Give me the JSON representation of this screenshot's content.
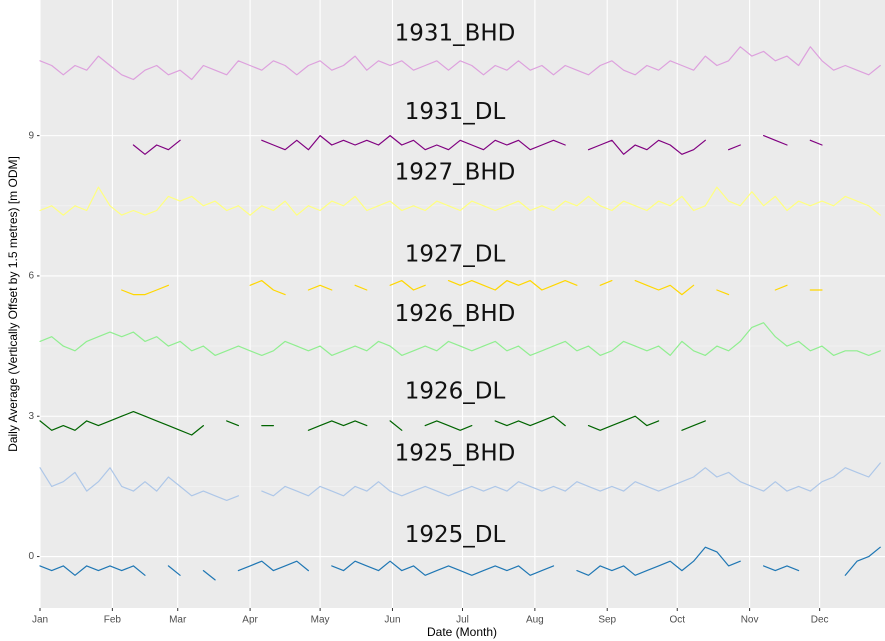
{
  "chart_data": {
    "type": "line",
    "x_label": "Date (Month)",
    "y_label": "Daily Average (Vertically Offset by 1.5 metres) [m ODM]",
    "x": [
      1,
      6,
      11,
      16,
      21,
      26,
      31,
      36,
      41,
      46,
      51,
      56,
      61,
      66,
      71,
      76,
      81,
      86,
      91,
      96,
      101,
      106,
      111,
      116,
      121,
      126,
      131,
      136,
      141,
      146,
      151,
      156,
      161,
      166,
      171,
      176,
      181,
      186,
      191,
      196,
      201,
      206,
      211,
      216,
      221,
      226,
      231,
      236,
      241,
      246,
      251,
      256,
      261,
      266,
      271,
      276,
      281,
      286,
      291,
      296,
      301,
      306,
      311,
      316,
      321,
      326,
      331,
      336,
      341,
      346,
      351,
      356,
      361
    ],
    "xlim": [
      1,
      363
    ],
    "xticks": [
      {
        "value": 1,
        "label": "Jan"
      },
      {
        "value": 32,
        "label": "Feb"
      },
      {
        "value": 60,
        "label": "Mar"
      },
      {
        "value": 91,
        "label": "Apr"
      },
      {
        "value": 121,
        "label": "May"
      },
      {
        "value": 152,
        "label": "Jun"
      },
      {
        "value": 182,
        "label": "Jul"
      },
      {
        "value": 213,
        "label": "Aug"
      },
      {
        "value": 244,
        "label": "Sep"
      },
      {
        "value": 274,
        "label": "Oct"
      },
      {
        "value": 305,
        "label": "Nov"
      },
      {
        "value": 335,
        "label": "Dec"
      }
    ],
    "ylim": [
      -1.1,
      11.9
    ],
    "yticks": [
      0,
      3,
      6,
      9
    ],
    "grid": true,
    "series": [
      {
        "name": "1931_BHD",
        "color": "#dda0dd",
        "values": [
          10.6,
          10.5,
          10.3,
          10.5,
          10.4,
          10.7,
          10.5,
          10.3,
          10.2,
          10.4,
          10.5,
          10.3,
          10.4,
          10.2,
          10.5,
          10.4,
          10.3,
          10.6,
          10.5,
          10.4,
          10.6,
          10.5,
          10.3,
          10.5,
          10.6,
          10.4,
          10.5,
          10.7,
          10.4,
          10.6,
          10.5,
          10.6,
          10.4,
          10.5,
          10.6,
          10.4,
          10.6,
          10.5,
          10.3,
          10.5,
          10.4,
          10.6,
          10.4,
          10.5,
          10.3,
          10.5,
          10.4,
          10.3,
          10.5,
          10.6,
          10.4,
          10.3,
          10.5,
          10.4,
          10.6,
          10.5,
          10.4,
          10.7,
          10.5,
          10.6,
          10.9,
          10.7,
          10.8,
          10.6,
          10.7,
          10.5,
          10.9,
          10.6,
          10.4,
          10.5,
          10.4,
          10.3,
          10.5
        ]
      },
      {
        "name": "1931_DL",
        "color": "#800080",
        "values": [
          null,
          null,
          null,
          null,
          null,
          null,
          null,
          null,
          8.8,
          8.6,
          8.8,
          8.7,
          8.9,
          null,
          8.8,
          null,
          null,
          null,
          null,
          8.9,
          8.8,
          8.7,
          8.9,
          8.7,
          9.0,
          8.8,
          8.9,
          8.8,
          8.9,
          8.8,
          9.0,
          8.8,
          8.9,
          8.7,
          8.8,
          8.7,
          8.9,
          8.8,
          8.7,
          8.9,
          8.8,
          8.9,
          8.7,
          8.8,
          8.9,
          8.8,
          null,
          8.7,
          8.8,
          8.9,
          8.6,
          8.8,
          8.7,
          8.9,
          8.8,
          8.6,
          8.7,
          8.9,
          null,
          8.7,
          8.8,
          null,
          9.0,
          8.9,
          8.8,
          null,
          8.9,
          8.8,
          null,
          null,
          null,
          null,
          null
        ]
      },
      {
        "name": "1927_BHD",
        "color": "#ffff80",
        "values": [
          7.4,
          7.5,
          7.3,
          7.5,
          7.4,
          7.9,
          7.5,
          7.3,
          7.4,
          7.3,
          7.4,
          7.7,
          7.6,
          7.7,
          7.5,
          7.6,
          7.4,
          7.5,
          7.3,
          7.5,
          7.4,
          7.6,
          7.3,
          7.5,
          7.4,
          7.6,
          7.5,
          7.7,
          7.4,
          7.5,
          7.6,
          7.4,
          7.5,
          7.4,
          7.6,
          7.5,
          7.4,
          7.6,
          7.5,
          7.4,
          7.5,
          7.6,
          7.4,
          7.5,
          7.4,
          7.6,
          7.5,
          7.7,
          7.5,
          7.4,
          7.6,
          7.5,
          7.4,
          7.6,
          7.5,
          7.7,
          7.4,
          7.5,
          7.9,
          7.6,
          7.5,
          7.8,
          7.5,
          7.7,
          7.4,
          7.6,
          7.5,
          7.6,
          7.5,
          7.7,
          7.6,
          7.5,
          7.3
        ]
      },
      {
        "name": "1927_DL",
        "color": "#ffd700",
        "values": [
          null,
          null,
          null,
          null,
          null,
          null,
          null,
          5.7,
          5.6,
          5.6,
          5.7,
          5.8,
          null,
          5.9,
          null,
          5.7,
          null,
          null,
          5.8,
          5.9,
          5.7,
          5.6,
          null,
          5.7,
          5.8,
          5.7,
          null,
          5.8,
          5.7,
          null,
          5.8,
          5.9,
          5.7,
          5.8,
          null,
          5.9,
          5.8,
          5.9,
          5.8,
          5.7,
          5.9,
          5.8,
          5.9,
          5.7,
          5.8,
          5.9,
          5.8,
          null,
          5.8,
          5.9,
          null,
          5.9,
          5.8,
          5.7,
          5.8,
          5.6,
          5.8,
          null,
          5.7,
          5.6,
          null,
          5.8,
          null,
          5.7,
          5.8,
          null,
          5.7,
          5.7,
          null,
          null,
          null,
          null,
          null
        ]
      },
      {
        "name": "1926_BHD",
        "color": "#90ee90",
        "values": [
          4.6,
          4.7,
          4.5,
          4.4,
          4.6,
          4.7,
          4.8,
          4.7,
          4.8,
          4.6,
          4.7,
          4.5,
          4.6,
          4.4,
          4.5,
          4.3,
          4.4,
          4.5,
          4.4,
          4.3,
          4.4,
          4.6,
          4.5,
          4.4,
          4.5,
          4.3,
          4.4,
          4.5,
          4.4,
          4.6,
          4.5,
          4.3,
          4.4,
          4.5,
          4.4,
          4.6,
          4.5,
          4.4,
          4.5,
          4.6,
          4.4,
          4.5,
          4.3,
          4.4,
          4.5,
          4.6,
          4.4,
          4.5,
          4.3,
          4.4,
          4.6,
          4.5,
          4.4,
          4.5,
          4.3,
          4.6,
          4.4,
          4.3,
          4.5,
          4.4,
          4.6,
          4.9,
          5.0,
          4.7,
          4.5,
          4.6,
          4.4,
          4.5,
          4.3,
          4.4,
          4.4,
          4.3,
          4.4
        ]
      },
      {
        "name": "1926_DL",
        "color": "#006400",
        "values": [
          2.9,
          2.7,
          2.8,
          2.7,
          2.9,
          2.8,
          2.9,
          3.0,
          3.1,
          3.0,
          2.9,
          2.8,
          2.7,
          2.6,
          2.8,
          null,
          2.9,
          2.8,
          null,
          2.8,
          2.8,
          null,
          null,
          2.7,
          2.8,
          2.9,
          2.8,
          2.9,
          2.8,
          null,
          2.9,
          2.7,
          null,
          2.8,
          2.9,
          2.8,
          2.7,
          2.8,
          null,
          2.9,
          2.8,
          2.9,
          2.8,
          2.9,
          3.0,
          2.8,
          null,
          2.8,
          2.7,
          2.8,
          2.9,
          3.0,
          2.8,
          2.9,
          null,
          2.7,
          2.8,
          2.9,
          null,
          null,
          null,
          null,
          null,
          null,
          null,
          null,
          null,
          null,
          null,
          null,
          null,
          null,
          null
        ]
      },
      {
        "name": "1925_BHD",
        "color": "#aec7e8",
        "values": [
          1.9,
          1.5,
          1.6,
          1.8,
          1.4,
          1.6,
          1.9,
          1.5,
          1.4,
          1.6,
          1.4,
          1.7,
          1.5,
          1.3,
          1.4,
          1.3,
          1.2,
          1.3,
          null,
          1.4,
          1.3,
          1.5,
          1.4,
          1.3,
          1.5,
          1.4,
          1.3,
          1.5,
          1.4,
          1.6,
          1.4,
          1.3,
          1.4,
          1.5,
          1.4,
          1.3,
          1.4,
          1.5,
          1.4,
          1.5,
          1.4,
          1.6,
          1.5,
          1.4,
          1.5,
          1.4,
          1.6,
          1.5,
          1.4,
          1.5,
          1.4,
          1.6,
          1.5,
          1.4,
          1.5,
          1.6,
          1.7,
          1.9,
          1.7,
          1.8,
          1.6,
          1.5,
          1.4,
          1.6,
          1.4,
          1.5,
          1.4,
          1.6,
          1.7,
          1.9,
          1.8,
          1.7,
          2.0
        ]
      },
      {
        "name": "1925_DL",
        "color": "#1f77b4",
        "values": [
          -0.2,
          -0.3,
          -0.2,
          -0.4,
          -0.2,
          -0.3,
          -0.2,
          -0.3,
          -0.2,
          -0.4,
          null,
          -0.2,
          -0.4,
          null,
          -0.3,
          -0.5,
          null,
          -0.3,
          -0.2,
          -0.1,
          -0.3,
          -0.2,
          -0.1,
          -0.3,
          null,
          -0.2,
          -0.3,
          -0.1,
          -0.2,
          -0.3,
          -0.1,
          -0.3,
          -0.2,
          -0.4,
          -0.3,
          -0.2,
          -0.3,
          -0.4,
          -0.3,
          -0.2,
          -0.3,
          -0.2,
          -0.4,
          -0.3,
          -0.2,
          null,
          -0.3,
          -0.4,
          -0.2,
          -0.3,
          -0.2,
          -0.4,
          -0.3,
          -0.2,
          -0.1,
          -0.3,
          -0.1,
          0.2,
          0.1,
          -0.2,
          -0.1,
          null,
          -0.2,
          -0.3,
          -0.2,
          -0.3,
          null,
          0.0,
          null,
          -0.4,
          -0.1,
          0.0,
          0.2
        ]
      }
    ]
  }
}
